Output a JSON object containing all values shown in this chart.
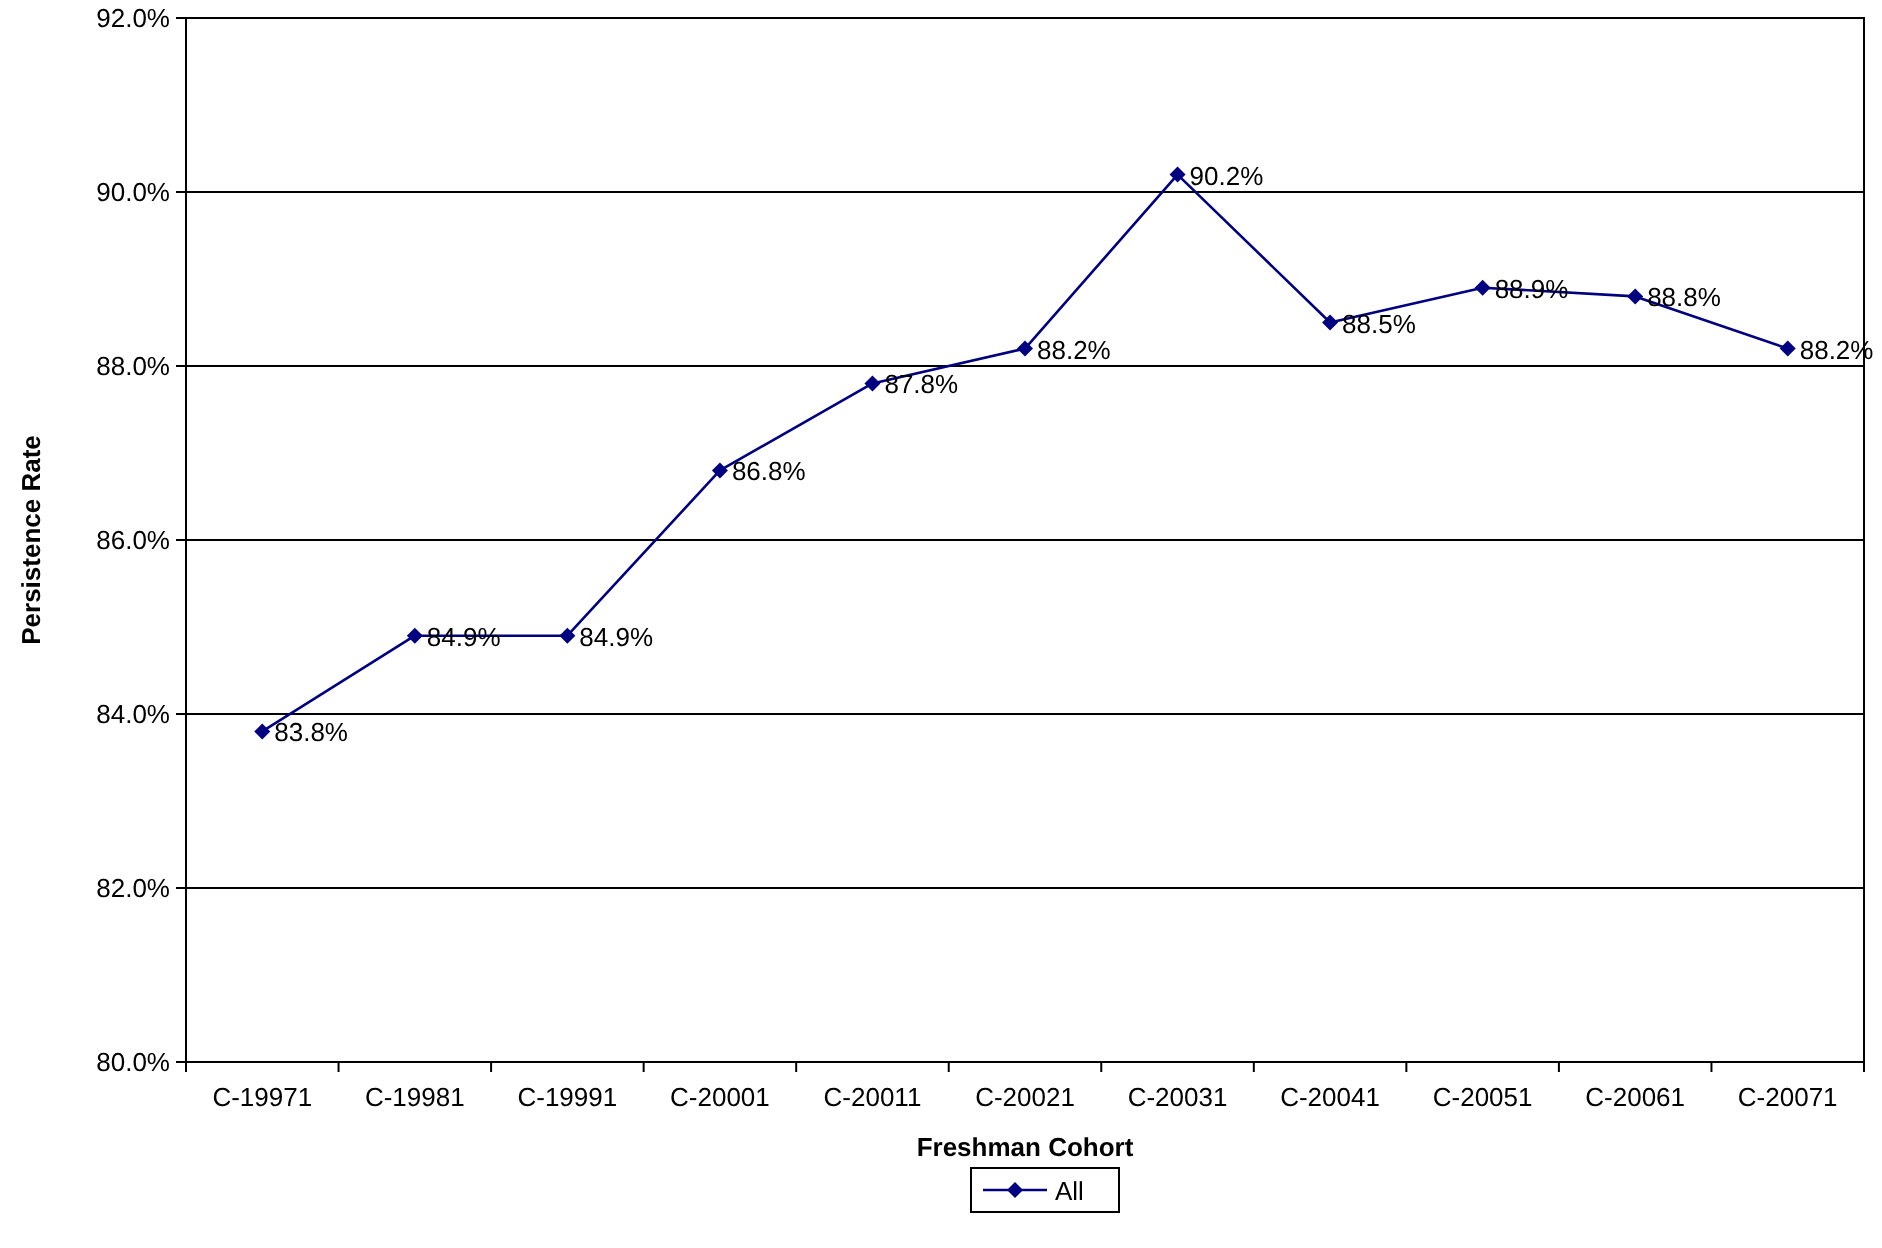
{
  "chart_data": {
    "type": "line",
    "xlabel": "Freshman Cohort",
    "ylabel": "Persistence Rate",
    "categories": [
      "C-19971",
      "C-19981",
      "C-19991",
      "C-20001",
      "C-20011",
      "C-20021",
      "C-20031",
      "C-20041",
      "C-20051",
      "C-20061",
      "C-20071"
    ],
    "series": [
      {
        "name": "All",
        "color": "#000080",
        "values": [
          83.8,
          84.9,
          84.9,
          86.8,
          87.8,
          88.2,
          90.2,
          88.5,
          88.9,
          88.8,
          88.2
        ],
        "value_labels": [
          "83.8%",
          "84.9%",
          "84.9%",
          "86.8%",
          "87.8%",
          "88.2%",
          "90.2%",
          "88.5%",
          "88.9%",
          "88.8%",
          "88.2%"
        ]
      }
    ],
    "ylim": [
      80,
      92
    ],
    "yticks": [
      {
        "value": 80,
        "label": "80.0%"
      },
      {
        "value": 82,
        "label": "82.0%"
      },
      {
        "value": 84,
        "label": "84.0%"
      },
      {
        "value": 86,
        "label": "86.0%"
      },
      {
        "value": 88,
        "label": "88.0%"
      },
      {
        "value": 90,
        "label": "90.0%"
      },
      {
        "value": 92,
        "label": "92.0%"
      }
    ],
    "grid": "y",
    "legend": "bottom",
    "marker": "diamond",
    "line_style": "solid"
  }
}
